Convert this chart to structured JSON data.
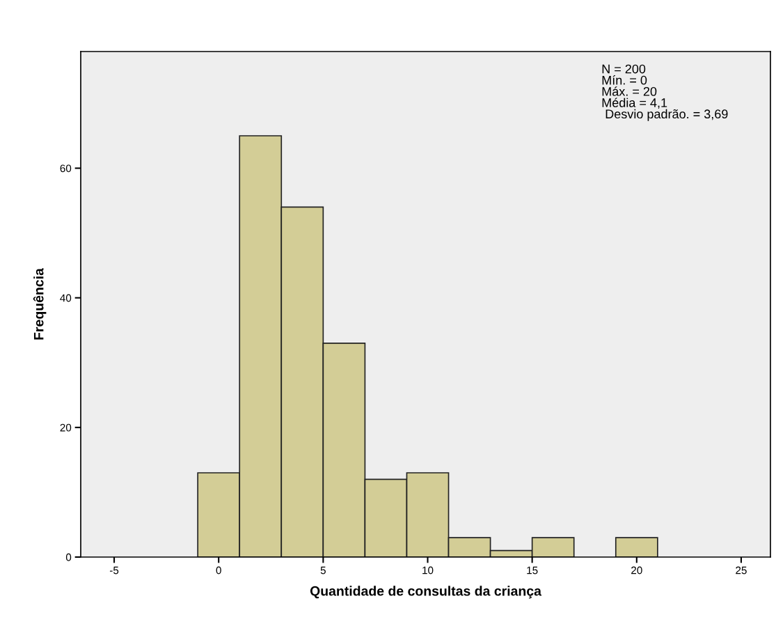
{
  "chart_data": {
    "type": "histogram",
    "xlabel": "Quantidade de consultas da criança",
    "ylabel": "Frequência",
    "bins": [
      -1,
      1,
      3,
      5,
      7,
      9,
      11,
      13,
      15,
      17,
      19,
      21
    ],
    "values": [
      13,
      65,
      54,
      33,
      12,
      13,
      3,
      1,
      3,
      0,
      3
    ],
    "color": "#d3cd96",
    "xlim": [
      -6.6,
      26.4
    ],
    "xticks": [
      -5,
      0,
      5,
      10,
      15,
      20,
      25
    ],
    "ylim": [
      0,
      78
    ],
    "yticks": [
      0,
      20,
      40,
      60
    ],
    "grid": false,
    "legend": false,
    "annotations": [
      "N = 200\nMín. = 0\nMáx. = 20\nMédia = 4,1\n Desvio padrão. = 3,69"
    ]
  }
}
